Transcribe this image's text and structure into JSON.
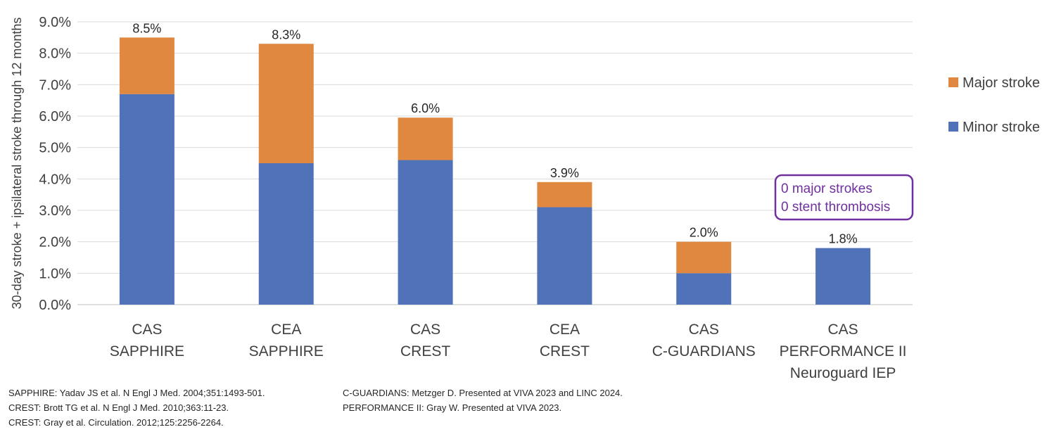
{
  "chart_data": {
    "type": "bar",
    "stacked": true,
    "ylabel": "30-day stroke + ipsilateral stroke through 12 months",
    "ylim": [
      0,
      9
    ],
    "ytick_labels": [
      "0.0%",
      "1.0%",
      "2.0%",
      "3.0%",
      "4.0%",
      "5.0%",
      "6.0%",
      "7.0%",
      "8.0%",
      "9.0%"
    ],
    "grid": true,
    "legend_position": "right",
    "categories": [
      [
        "CAS",
        "SAPPHIRE"
      ],
      [
        "CEA",
        "SAPPHIRE"
      ],
      [
        "CAS",
        "CREST"
      ],
      [
        "CEA",
        "CREST"
      ],
      [
        "CAS",
        "C-GUARDIANS"
      ],
      [
        "CAS",
        "PERFORMANCE II",
        "Neuroguard IEP"
      ]
    ],
    "series": [
      {
        "name": "Minor stroke",
        "color": "#4f72b8",
        "values": [
          6.7,
          4.5,
          4.6,
          3.1,
          1.0,
          1.8
        ]
      },
      {
        "name": "Major stroke",
        "color": "#e08740",
        "values": [
          1.8,
          3.8,
          1.35,
          0.8,
          1.0,
          0.0
        ]
      }
    ],
    "totals": [
      "8.5%",
      "8.3%",
      "6.0%",
      "3.9%",
      "2.0%",
      "1.8%"
    ],
    "highlight_total_index": 5,
    "highlight_color": "#7030a0",
    "annotation": {
      "lines": [
        "0 major strokes",
        "0 stent thrombosis"
      ],
      "color": "#7030a0"
    }
  },
  "references": {
    "left": [
      "SAPPHIRE: Yadav JS et al. N Engl J Med. 2004;351:1493-501.",
      "CREST: Brott TG et al. N Engl J Med. 2010;363:11-23.",
      "CREST: Gray et al. Circulation. 2012;125:2256-2264."
    ],
    "right": [
      "C-GUARDIANS: Metzger D. Presented at VIVA 2023 and LINC 2024.",
      "PERFORMANCE II: Gray W. Presented at VIVA 2023."
    ]
  }
}
